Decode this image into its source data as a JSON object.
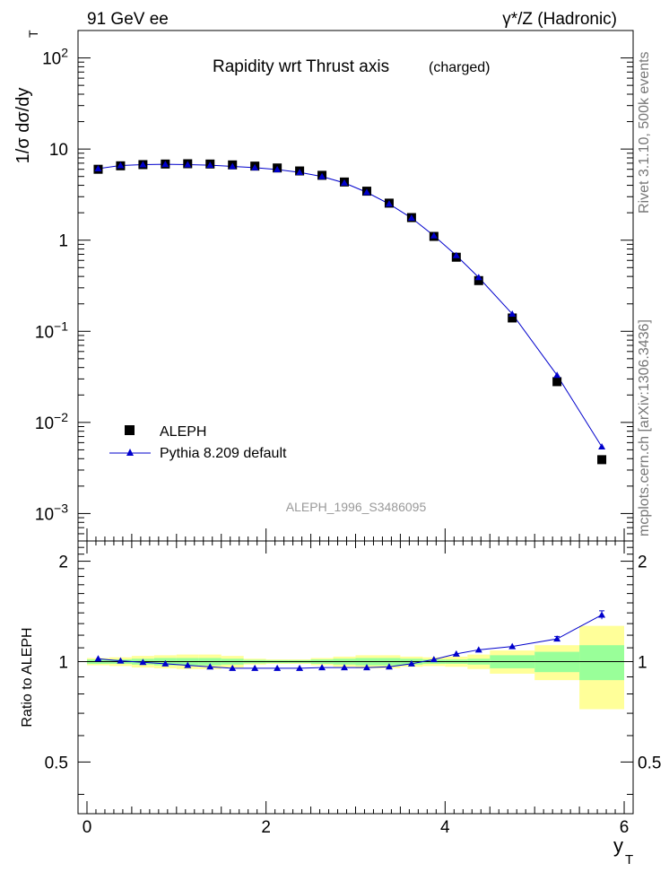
{
  "header": {
    "left": "91 GeV ee",
    "right": "γ*/Z (Hadronic)"
  },
  "side": {
    "rivet": "Rivet 3.1.10,  500k events",
    "mcplots": "mcplots.cern.ch [arXiv:1306.3436]"
  },
  "main": {
    "title": "Rapidity wrt Thrust axis",
    "title_sub": "(charged)",
    "ylabel": "1/σ dσ/dy",
    "ylabel_sub": "T",
    "analysis_id": "ALEPH_1996_S3486095",
    "ytick_labels": [
      "10^-3",
      "10^-2",
      "10^-1",
      "1",
      "10",
      "10^2"
    ]
  },
  "ratio": {
    "ylabel": "Ratio to ALEPH",
    "ytick_labels": [
      "0.5",
      "1",
      "2"
    ]
  },
  "xaxis": {
    "label": "y",
    "label_sub": "T",
    "tick_labels": [
      "0",
      "2",
      "4",
      "6"
    ]
  },
  "colors": {
    "data": "#000000",
    "mc": "#0000cc",
    "band_inner": "#99ff99",
    "band_outer": "#ffff99",
    "analysis_id": "#999999"
  },
  "chart_data": [
    {
      "type": "scatter",
      "yscale": "log",
      "xlim": [
        -0.1,
        6.1
      ],
      "ylim": [
        0.0005,
        200
      ],
      "legend_position": "bottom-left",
      "x": [
        0.125,
        0.375,
        0.625,
        0.875,
        1.125,
        1.375,
        1.625,
        1.875,
        2.125,
        2.375,
        2.625,
        2.875,
        3.125,
        3.375,
        3.625,
        3.875,
        4.125,
        4.375,
        4.75,
        5.25,
        5.75
      ],
      "series": [
        {
          "name": "ALEPH",
          "marker": "square",
          "values": [
            6.0,
            6.55,
            6.75,
            6.85,
            6.9,
            6.85,
            6.7,
            6.5,
            6.2,
            5.75,
            5.15,
            4.35,
            3.45,
            2.55,
            1.77,
            1.1,
            0.65,
            0.36,
            0.14,
            0.028,
            0.0039
          ]
        },
        {
          "name": "Pythia 8.209 default",
          "marker": "triangle",
          "values": [
            6.1,
            6.6,
            6.75,
            6.8,
            6.75,
            6.65,
            6.45,
            6.25,
            5.95,
            5.55,
            5.0,
            4.25,
            3.35,
            2.5,
            1.75,
            1.12,
            0.68,
            0.39,
            0.155,
            0.033,
            0.0054
          ]
        }
      ]
    },
    {
      "type": "scatter",
      "xlim": [
        -0.1,
        6.1
      ],
      "ylim": [
        0.35,
        2.3
      ],
      "x": [
        0.125,
        0.375,
        0.625,
        0.875,
        1.125,
        1.375,
        1.625,
        1.875,
        2.125,
        2.375,
        2.625,
        2.875,
        3.125,
        3.375,
        3.625,
        3.875,
        4.125,
        4.375,
        4.75,
        5.25,
        5.75
      ],
      "series": [
        {
          "name": "Pythia 8.209 default",
          "values": [
            1.02,
            1.005,
            0.995,
            0.985,
            0.975,
            0.965,
            0.955,
            0.955,
            0.955,
            0.955,
            0.96,
            0.96,
            0.96,
            0.965,
            0.985,
            1.015,
            1.055,
            1.085,
            1.11,
            1.17,
            1.38
          ],
          "errors": [
            0.005,
            0.004,
            0.004,
            0.004,
            0.004,
            0.004,
            0.004,
            0.004,
            0.004,
            0.004,
            0.004,
            0.004,
            0.004,
            0.004,
            0.005,
            0.006,
            0.007,
            0.009,
            0.01,
            0.02,
            0.04
          ]
        }
      ],
      "bands": {
        "xlo": [
          0.0,
          0.25,
          0.5,
          0.75,
          1.0,
          1.25,
          1.5,
          1.75,
          2.0,
          2.25,
          2.5,
          2.75,
          3.0,
          3.25,
          3.5,
          3.75,
          4.0,
          4.25,
          4.5,
          5.0,
          5.5
        ],
        "xhi": [
          0.25,
          0.5,
          0.75,
          1.0,
          1.25,
          1.5,
          1.75,
          2.0,
          2.25,
          2.5,
          2.75,
          3.0,
          3.25,
          3.5,
          3.75,
          4.0,
          4.25,
          4.5,
          5.0,
          5.5,
          6.0
        ],
        "inner": [
          0.015,
          0.015,
          0.02,
          0.025,
          0.025,
          0.025,
          0.02,
          0.012,
          0.01,
          0.01,
          0.015,
          0.02,
          0.025,
          0.025,
          0.02,
          0.015,
          0.015,
          0.02,
          0.045,
          0.07,
          0.12
        ],
        "outer": [
          0.025,
          0.03,
          0.04,
          0.045,
          0.05,
          0.05,
          0.04,
          0.02,
          0.015,
          0.015,
          0.025,
          0.035,
          0.045,
          0.045,
          0.035,
          0.03,
          0.035,
          0.05,
          0.08,
          0.12,
          0.28
        ]
      }
    }
  ]
}
